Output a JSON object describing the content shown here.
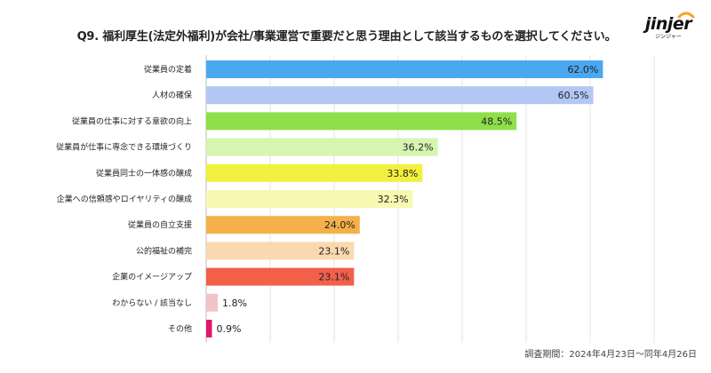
{
  "title": "Q9. 福利厚生(法定外福利)が会社/事業運営で重要だと思う理由として該当するものを選択してください。",
  "brand": {
    "name": "jinjer",
    "sub": "ジンジャー"
  },
  "footnote": "調査期間：2024年4月23日〜同年4月26日",
  "chart_data": {
    "type": "bar",
    "orientation": "horizontal",
    "title": "Q9. 福利厚生(法定外福利)が会社/事業運営で重要だと思う理由として該当するものを選択してください。",
    "categories": [
      "従業員の定着",
      "人材の確保",
      "従業員の仕事に対する意欲の向上",
      "従業員が仕事に専念できる環境づくり",
      "従業員同士の一体感の醸成",
      "企業への信頼感やロイヤリティの醸成",
      "従業員の自立支援",
      "公的福祉の補完",
      "企業のイメージアップ",
      "わからない / 該当なし",
      "その他"
    ],
    "values": [
      62.0,
      60.5,
      48.5,
      36.2,
      33.8,
      32.3,
      24.0,
      23.1,
      23.1,
      1.8,
      0.9
    ],
    "value_labels": [
      "62.0%",
      "60.5%",
      "48.5%",
      "36.2%",
      "33.8%",
      "32.3%",
      "24.0%",
      "23.1%",
      "23.1%",
      "1.8%",
      "0.9%"
    ],
    "colors": [
      "#4aa8f0",
      "#b3c7f5",
      "#8ee04a",
      "#d6f5b0",
      "#f2f03e",
      "#f8f8b0",
      "#f5b04a",
      "#fad9b0",
      "#f2604a",
      "#f0c4c8",
      "#e0186c"
    ],
    "xlim": [
      0,
      70
    ],
    "grid": true
  }
}
